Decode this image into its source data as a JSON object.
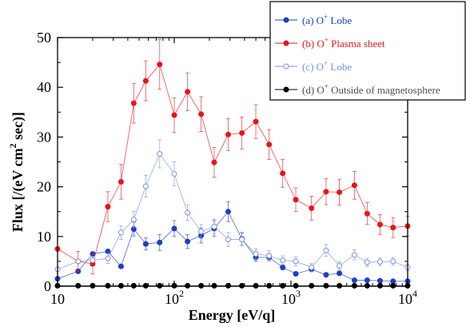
{
  "chart_data": {
    "type": "line",
    "xscale": "log",
    "xlim": [
      10,
      10000
    ],
    "ylim": [
      0,
      50
    ],
    "yticks": [
      0,
      10,
      20,
      30,
      40,
      50
    ],
    "xtick_labels": [
      {
        "value": 10,
        "base": "10",
        "exp": ""
      },
      {
        "value": 100,
        "base": "10",
        "exp": "2"
      },
      {
        "value": 1000,
        "base": "10",
        "exp": "3"
      },
      {
        "value": 10000,
        "base": "10",
        "exp": "4"
      }
    ],
    "xlabel": "Energy [eV/q]",
    "ylabel": {
      "pre": "Flux [/(eV cm",
      "sup": "2",
      "post": " sec)]"
    },
    "x": [
      10,
      15,
      20,
      27,
      35,
      45,
      57,
      75,
      100,
      130,
      170,
      220,
      290,
      380,
      500,
      650,
      850,
      1100,
      1500,
      2000,
      2600,
      3500,
      4500,
      5800,
      7500,
      10000
    ],
    "series": [
      {
        "legend": {
          "label": "(a) O",
          "sup": "+",
          "rest": " Lobe"
        },
        "color": "#1f3fbf",
        "marker": "filled",
        "values": [
          1.5,
          3.0,
          6.5,
          7.0,
          4.0,
          11.5,
          8.5,
          8.8,
          11.6,
          9.0,
          10.2,
          11.6,
          15.0,
          9.5,
          5.8,
          5.8,
          3.8,
          2.5,
          3.4,
          2.3,
          2.6,
          1.2,
          1.2,
          1.1,
          1.0,
          1.0
        ],
        "errors": [
          0,
          0,
          0,
          0,
          0,
          1.4,
          1.2,
          1.6,
          1.6,
          1.4,
          1.5,
          1.6,
          2.0,
          1.3,
          0.8,
          0.7,
          0.5,
          0.4,
          0.4,
          0.4,
          0.4,
          0.2,
          0.2,
          0.2,
          0.2,
          0.2
        ]
      },
      {
        "legend": {
          "label": "(b) O",
          "sup": "+",
          "rest": " Plasma sheet"
        },
        "color": "#e8141c",
        "marker": "filled",
        "values": [
          7.5,
          5.0,
          4.5,
          16.0,
          21.0,
          36.8,
          41.3,
          44.6,
          34.4,
          39.1,
          34.6,
          24.9,
          30.5,
          30.8,
          33.1,
          28.5,
          22.7,
          17.4,
          15.7,
          19.0,
          18.9,
          20.3,
          14.6,
          12.4,
          11.8,
          12.1
        ],
        "errors": [
          0,
          2.0,
          2.0,
          3.0,
          3.5,
          4.0,
          4.0,
          5.0,
          3.5,
          3.8,
          3.5,
          3.0,
          3.2,
          3.2,
          3.4,
          3.0,
          2.8,
          2.4,
          2.4,
          2.6,
          2.6,
          2.8,
          2.2,
          2.0,
          2.0,
          2.0
        ]
      },
      {
        "legend": {
          "label": "(c) O",
          "sup": "+",
          "rest": " Lobe"
        },
        "color": "#7b90de",
        "marker": "open",
        "values": [
          3.4,
          5.0,
          5.2,
          5.6,
          10.8,
          13.4,
          20.1,
          26.6,
          22.6,
          14.8,
          11.0,
          12.0,
          9.4,
          9.4,
          6.5,
          6.1,
          5.2,
          5.0,
          3.8,
          7.2,
          4.1,
          6.3,
          4.8,
          4.9,
          5.0,
          3.8
        ],
        "errors": [
          0,
          0,
          0,
          1.0,
          1.4,
          1.6,
          2.2,
          2.8,
          2.4,
          1.6,
          1.4,
          1.5,
          1.4,
          1.2,
          1.0,
          1.0,
          0.9,
          0.9,
          0.8,
          1.2,
          0.8,
          1.0,
          0.8,
          0.8,
          0.8,
          0.7
        ]
      },
      {
        "legend": {
          "label": "(d) O",
          "sup": "+",
          "rest": " Outside of magnetosphere"
        },
        "color": "#000000",
        "marker": "filled",
        "values": [
          0.1,
          0.1,
          0.1,
          0.1,
          0.1,
          0.1,
          0.1,
          0.1,
          0.1,
          0.1,
          0.1,
          0.1,
          0.1,
          0.1,
          0.1,
          0.1,
          0.1,
          0.1,
          0.1,
          0.1,
          0.1,
          0.1,
          0.1,
          0.1,
          0.1,
          0.1
        ],
        "errors": []
      }
    ]
  }
}
